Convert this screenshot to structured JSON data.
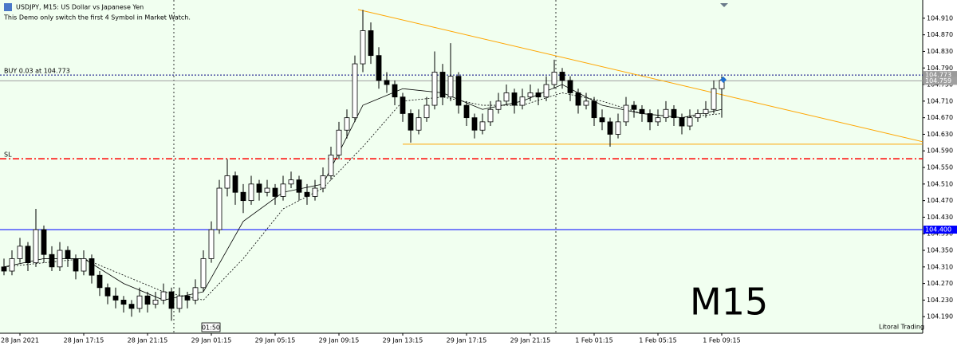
{
  "chart_data": {
    "type": "candlestick",
    "title": "USDJPY, M15:  US Dollar vs Japanese Yen",
    "subtitle": "This Demo only switch the first 4 Symbol in Market Watch.",
    "watermark": "M15",
    "footer": "Litoral Trading",
    "time_marker": "01:50",
    "background": "#f1fff0",
    "xlim": [
      -0.5,
      115.2
    ],
    "ylim": [
      104.15,
      104.954
    ],
    "xticks": [
      {
        "value": 2,
        "label": "28 Jan 2021"
      },
      {
        "value": 10,
        "label": "28 Jan 17:15"
      },
      {
        "value": 18,
        "label": "28 Jan 21:15"
      },
      {
        "value": 26,
        "label": "29 Jan 01:15"
      },
      {
        "value": 34,
        "label": "29 Jan 05:15"
      },
      {
        "value": 42,
        "label": "29 Jan 09:15"
      },
      {
        "value": 50,
        "label": "29 Jan 13:15"
      },
      {
        "value": 58,
        "label": "29 Jan 17:15"
      },
      {
        "value": 66,
        "label": "29 Jan 21:15"
      },
      {
        "value": 74,
        "label": "1 Feb 01:15"
      },
      {
        "value": 82,
        "label": "1 Feb 05:15"
      },
      {
        "value": 90,
        "label": "1 Feb 09:15"
      }
    ],
    "yticks": [
      {
        "value": 104.91,
        "label": "104.910"
      },
      {
        "value": 104.87,
        "label": "104.870"
      },
      {
        "value": 104.83,
        "label": "104.830"
      },
      {
        "value": 104.79,
        "label": "104.790"
      },
      {
        "value": 104.75,
        "label": "104.750"
      },
      {
        "value": 104.71,
        "label": "104.710"
      },
      {
        "value": 104.67,
        "label": "104.670"
      },
      {
        "value": 104.63,
        "label": "104.630"
      },
      {
        "value": 104.59,
        "label": "104.590"
      },
      {
        "value": 104.55,
        "label": "104.550"
      },
      {
        "value": 104.51,
        "label": "104.510"
      },
      {
        "value": 104.47,
        "label": "104.470"
      },
      {
        "value": 104.43,
        "label": "104.430"
      },
      {
        "value": 104.39,
        "label": "104.390"
      },
      {
        "value": 104.35,
        "label": "104.350"
      },
      {
        "value": 104.31,
        "label": "104.310"
      },
      {
        "value": 104.27,
        "label": "104.270"
      },
      {
        "value": 104.23,
        "label": "104.230"
      },
      {
        "value": 104.19,
        "label": "104.190"
      }
    ],
    "separators": [
      21.3,
      69.2
    ],
    "up_color": "#ffffff",
    "down_color": "#000000",
    "candles": [
      [
        104.31,
        104.33,
        104.29,
        104.3
      ],
      [
        104.3,
        104.35,
        104.29,
        104.33
      ],
      [
        104.33,
        104.38,
        104.32,
        104.36
      ],
      [
        104.36,
        104.37,
        104.3,
        104.32
      ],
      [
        104.32,
        104.45,
        104.31,
        104.4
      ],
      [
        104.4,
        104.41,
        104.32,
        104.34
      ],
      [
        104.34,
        104.36,
        104.3,
        104.31
      ],
      [
        104.31,
        104.37,
        104.3,
        104.35
      ],
      [
        104.35,
        104.36,
        104.31,
        104.33
      ],
      [
        104.33,
        104.34,
        104.28,
        104.3
      ],
      [
        104.3,
        104.35,
        104.29,
        104.33
      ],
      [
        104.33,
        104.34,
        104.27,
        104.29
      ],
      [
        104.29,
        104.3,
        104.24,
        104.26
      ],
      [
        104.26,
        104.27,
        104.22,
        104.24
      ],
      [
        104.24,
        104.26,
        104.21,
        104.23
      ],
      [
        104.23,
        104.24,
        104.2,
        104.22
      ],
      [
        104.22,
        104.23,
        104.19,
        104.21
      ],
      [
        104.21,
        104.26,
        104.2,
        104.24
      ],
      [
        104.24,
        104.25,
        104.2,
        104.22
      ],
      [
        104.22,
        104.25,
        104.21,
        104.23
      ],
      [
        104.23,
        104.27,
        104.22,
        104.25
      ],
      [
        104.25,
        104.26,
        104.18,
        104.21
      ],
      [
        104.21,
        104.26,
        104.2,
        104.24
      ],
      [
        104.24,
        104.25,
        104.21,
        104.23
      ],
      [
        104.23,
        104.28,
        104.22,
        104.26
      ],
      [
        104.26,
        104.35,
        104.25,
        104.33
      ],
      [
        104.33,
        104.42,
        104.32,
        104.4
      ],
      [
        104.4,
        104.52,
        104.39,
        104.5
      ],
      [
        104.5,
        104.57,
        104.48,
        104.53
      ],
      [
        104.53,
        104.54,
        104.46,
        104.49
      ],
      [
        104.49,
        104.51,
        104.44,
        104.47
      ],
      [
        104.47,
        104.53,
        104.46,
        104.51
      ],
      [
        104.51,
        104.52,
        104.47,
        104.49
      ],
      [
        104.49,
        104.52,
        104.48,
        104.5
      ],
      [
        104.5,
        104.51,
        104.46,
        104.48
      ],
      [
        104.48,
        104.53,
        104.47,
        104.51
      ],
      [
        104.51,
        104.54,
        104.5,
        104.52
      ],
      [
        104.52,
        104.53,
        104.47,
        104.49
      ],
      [
        104.49,
        104.51,
        104.46,
        104.48
      ],
      [
        104.48,
        104.52,
        104.47,
        104.5
      ],
      [
        104.5,
        104.55,
        104.49,
        104.53
      ],
      [
        104.53,
        104.6,
        104.52,
        104.58
      ],
      [
        104.58,
        104.66,
        104.57,
        104.64
      ],
      [
        104.64,
        104.69,
        104.62,
        104.67
      ],
      [
        104.67,
        104.82,
        104.66,
        104.8
      ],
      [
        104.8,
        104.93,
        104.78,
        104.88
      ],
      [
        104.88,
        104.9,
        104.8,
        104.82
      ],
      [
        104.82,
        104.84,
        104.74,
        104.76
      ],
      [
        104.76,
        104.78,
        104.73,
        104.75
      ],
      [
        104.75,
        104.76,
        104.7,
        104.72
      ],
      [
        104.72,
        104.73,
        104.66,
        104.68
      ],
      [
        104.68,
        104.69,
        104.61,
        104.64
      ],
      [
        104.64,
        104.69,
        104.63,
        104.67
      ],
      [
        104.67,
        104.72,
        104.66,
        104.7
      ],
      [
        104.7,
        104.83,
        104.69,
        104.78
      ],
      [
        104.78,
        104.8,
        104.7,
        104.72
      ],
      [
        104.72,
        104.85,
        104.71,
        104.77
      ],
      [
        104.77,
        104.78,
        104.68,
        104.7
      ],
      [
        104.7,
        104.71,
        104.65,
        104.67
      ],
      [
        104.67,
        104.68,
        104.62,
        104.64
      ],
      [
        104.64,
        104.68,
        104.63,
        104.66
      ],
      [
        104.66,
        104.71,
        104.65,
        104.69
      ],
      [
        104.69,
        104.73,
        104.68,
        104.71
      ],
      [
        104.71,
        104.75,
        104.7,
        104.73
      ],
      [
        104.73,
        104.74,
        104.68,
        104.7
      ],
      [
        104.7,
        104.74,
        104.69,
        104.72
      ],
      [
        104.72,
        104.75,
        104.71,
        104.73
      ],
      [
        104.73,
        104.74,
        104.7,
        104.72
      ],
      [
        104.72,
        104.77,
        104.71,
        104.75
      ],
      [
        104.75,
        104.81,
        104.74,
        104.78
      ],
      [
        104.78,
        104.79,
        104.74,
        104.76
      ],
      [
        104.76,
        104.77,
        104.71,
        104.73
      ],
      [
        104.73,
        104.74,
        104.68,
        104.7
      ],
      [
        104.7,
        104.73,
        104.69,
        104.71
      ],
      [
        104.71,
        104.72,
        104.65,
        104.67
      ],
      [
        104.67,
        104.69,
        104.64,
        104.66
      ],
      [
        104.66,
        104.67,
        104.6,
        104.63
      ],
      [
        104.63,
        104.68,
        104.62,
        104.66
      ],
      [
        104.66,
        104.72,
        104.65,
        104.7
      ],
      [
        104.7,
        104.71,
        104.67,
        104.69
      ],
      [
        104.69,
        104.7,
        104.66,
        104.68
      ],
      [
        104.68,
        104.69,
        104.64,
        104.66
      ],
      [
        104.66,
        104.69,
        104.65,
        104.67
      ],
      [
        104.67,
        104.71,
        104.66,
        104.69
      ],
      [
        104.69,
        104.7,
        104.65,
        104.67
      ],
      [
        104.67,
        104.68,
        104.63,
        104.65
      ],
      [
        104.65,
        104.69,
        104.64,
        104.67
      ],
      [
        104.67,
        104.69,
        104.66,
        104.68
      ],
      [
        104.68,
        104.71,
        104.67,
        104.69
      ],
      [
        104.69,
        104.76,
        104.68,
        104.74
      ],
      [
        104.74,
        104.77,
        104.67,
        104.76
      ]
    ],
    "indicators": [
      {
        "color": "#000000",
        "style": "solid",
        "x": [
          0,
          5,
          10,
          15,
          20,
          25,
          30,
          35,
          40,
          45,
          50,
          55,
          60,
          65,
          70,
          75,
          80,
          85,
          90
        ],
        "values": [
          104.31,
          104.33,
          104.33,
          104.27,
          104.23,
          104.25,
          104.42,
          104.49,
          104.51,
          104.7,
          104.74,
          104.73,
          104.69,
          104.71,
          104.75,
          104.7,
          104.68,
          104.67,
          104.69
        ]
      },
      {
        "color": "#000000",
        "style": "dotted",
        "x": [
          0,
          5,
          10,
          15,
          20,
          25,
          30,
          35,
          40,
          45,
          50,
          55,
          60,
          65,
          70,
          75,
          80,
          85,
          90
        ],
        "values": [
          104.31,
          104.32,
          104.33,
          104.29,
          104.25,
          104.23,
          104.33,
          104.45,
          104.5,
          104.6,
          104.71,
          104.72,
          104.7,
          104.7,
          104.73,
          104.71,
          104.68,
          104.67,
          104.68
        ]
      }
    ],
    "trendlines": [
      {
        "color": "#ffa500",
        "x": [
          44.4,
          115.2
        ],
        "y": [
          104.931,
          104.612
        ]
      },
      {
        "color": "#ffa500",
        "x": [
          50,
          115.2
        ],
        "y": [
          104.606,
          104.606
        ]
      }
    ],
    "levels": [
      {
        "value": 104.773,
        "label": "104.773",
        "color": "#000080",
        "style": "dotted",
        "tag": "#9a9a9a",
        "text": "BUY 0.03 at 104.773"
      },
      {
        "value": 104.759,
        "label": "104.759",
        "color": "#a0a0a0",
        "style": "solid",
        "tag": "#a0a0a0"
      },
      {
        "value": 104.571,
        "color": "#ff0000",
        "style": "dashdot",
        "text": "SL"
      },
      {
        "value": 104.4,
        "label": "104.400",
        "color": "#0000ff",
        "style": "solid",
        "tag": "#0000ff"
      }
    ]
  }
}
